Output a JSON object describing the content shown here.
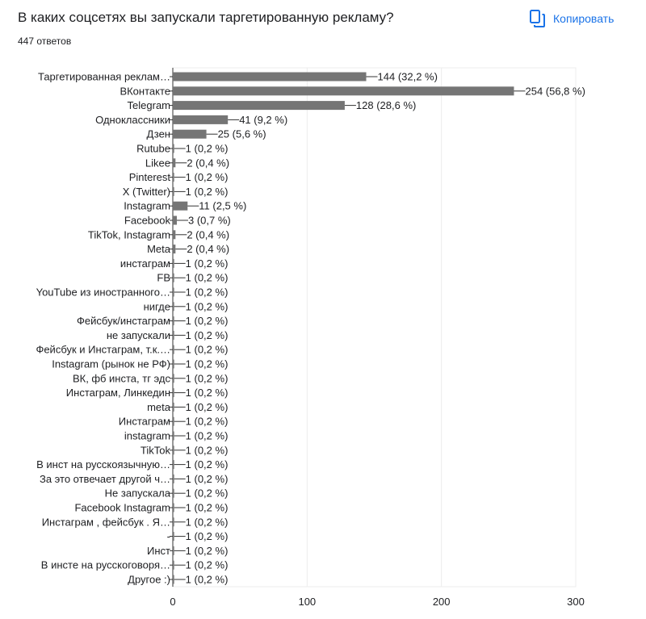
{
  "header": {
    "question": "В каких соцсетях вы запускали таргетированную рекламу?",
    "responses": "447 ответов",
    "copy_label": "Копировать",
    "copy_icon": "copy-icon",
    "accent_color": "#1a73e8"
  },
  "chart_data": {
    "type": "bar",
    "orientation": "horizontal",
    "bar_color": "#757575",
    "xlim": [
      0,
      300
    ],
    "xticks": [
      "0",
      "100",
      "200",
      "300"
    ],
    "grid": true,
    "categories": [
      "Таргетированная реклам…",
      "ВКонтакте",
      "Telegram",
      "Одноклассники",
      "Дзен",
      "Rutube",
      "Likee",
      "Pinterest",
      "X (Twitter)",
      "Instagram",
      "Facebook",
      "TikTok, Instagram",
      "Meta",
      "инстаграм",
      "FB",
      "YouTube из иностранного…",
      "нигде",
      "Фейсбук/инстаграм",
      "не запускали",
      "Фейсбук и Инстаграм, т.к.…",
      "Instagram (рынок не РФ)",
      "ВК, фб инста, тг эдс",
      "Инстаграм, Линкедин",
      "meta",
      "Инстаграм",
      "instagram",
      "TikTok",
      "В инст на русскоязычную…",
      "За это отвечает другой ч…",
      "Не запускала",
      "Facebook Instagram",
      "Инстаграм , фейсбук . Я…",
      "-",
      "Инст",
      "В инсте на русскоговоря…",
      "Другое :)"
    ],
    "values": [
      144,
      254,
      128,
      41,
      25,
      1,
      2,
      1,
      1,
      11,
      3,
      2,
      2,
      1,
      1,
      1,
      1,
      1,
      1,
      1,
      1,
      1,
      1,
      1,
      1,
      1,
      1,
      1,
      1,
      1,
      1,
      1,
      1,
      1,
      1,
      1
    ],
    "value_labels": [
      "144 (32,2 %)",
      "254 (56,8 %)",
      "128 (28,6 %)",
      "41 (9,2 %)",
      "25 (5,6 %)",
      "1 (0,2 %)",
      "2 (0,4 %)",
      "1 (0,2 %)",
      "1 (0,2 %)",
      "11 (2,5 %)",
      "3 (0,7 %)",
      "2 (0,4 %)",
      "2 (0,4 %)",
      "1 (0,2 %)",
      "1 (0,2 %)",
      "1 (0,2 %)",
      "1 (0,2 %)",
      "1 (0,2 %)",
      "1 (0,2 %)",
      "1 (0,2 %)",
      "1 (0,2 %)",
      "1 (0,2 %)",
      "1 (0,2 %)",
      "1 (0,2 %)",
      "1 (0,2 %)",
      "1 (0,2 %)",
      "1 (0,2 %)",
      "1 (0,2 %)",
      "1 (0,2 %)",
      "1 (0,2 %)",
      "1 (0,2 %)",
      "1 (0,2 %)",
      "1 (0,2 %)",
      "1 (0,2 %)",
      "1 (0,2 %)",
      "1 (0,2 %)"
    ]
  }
}
